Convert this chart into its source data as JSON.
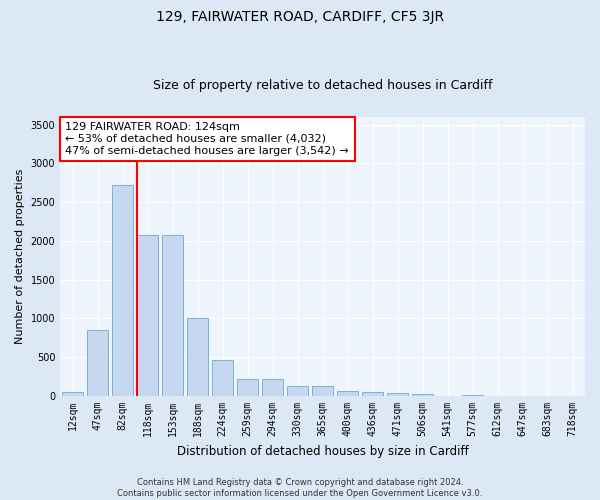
{
  "title": "129, FAIRWATER ROAD, CARDIFF, CF5 3JR",
  "subtitle": "Size of property relative to detached houses in Cardiff",
  "xlabel": "Distribution of detached houses by size in Cardiff",
  "ylabel": "Number of detached properties",
  "categories": [
    "12sqm",
    "47sqm",
    "82sqm",
    "118sqm",
    "153sqm",
    "188sqm",
    "224sqm",
    "259sqm",
    "294sqm",
    "330sqm",
    "365sqm",
    "400sqm",
    "436sqm",
    "471sqm",
    "506sqm",
    "541sqm",
    "577sqm",
    "612sqm",
    "647sqm",
    "683sqm",
    "718sqm"
  ],
  "values": [
    55,
    850,
    2720,
    2070,
    2070,
    1010,
    460,
    225,
    220,
    130,
    130,
    65,
    55,
    45,
    30,
    5,
    15,
    5,
    5,
    5,
    5
  ],
  "bar_color": "#c5d8f0",
  "bar_edge_color": "#6aaad4",
  "vline_color": "red",
  "annotation_text": "129 FAIRWATER ROAD: 124sqm\n← 53% of detached houses are smaller (4,032)\n47% of semi-detached houses are larger (3,542) →",
  "annotation_box_color": "white",
  "annotation_box_edge_color": "red",
  "ylim": [
    0,
    3600
  ],
  "yticks": [
    0,
    500,
    1000,
    1500,
    2000,
    2500,
    3000,
    3500
  ],
  "bg_color": "#dce8f5",
  "plot_bg_color": "#eef4fb",
  "grid_color": "white",
  "footer": "Contains HM Land Registry data © Crown copyright and database right 2024.\nContains public sector information licensed under the Open Government Licence v3.0.",
  "title_fontsize": 10,
  "subtitle_fontsize": 9,
  "xlabel_fontsize": 8.5,
  "ylabel_fontsize": 8,
  "tick_fontsize": 7,
  "annotation_fontsize": 8,
  "footer_fontsize": 6
}
